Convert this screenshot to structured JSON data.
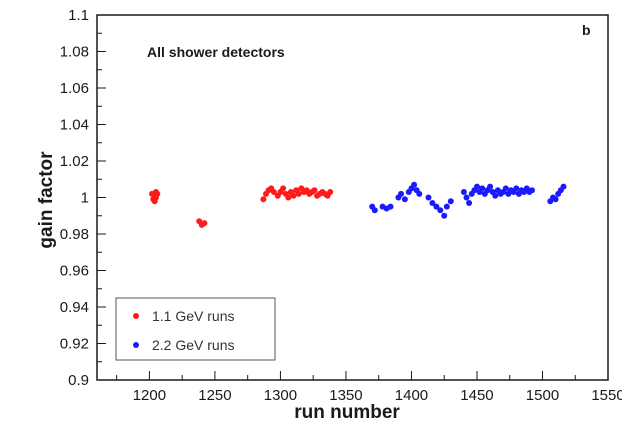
{
  "chart_data": {
    "type": "scatter",
    "title": "",
    "xlabel": "run number",
    "ylabel": "gain factor",
    "xlim": [
      1160,
      1550
    ],
    "ylim": [
      0.9,
      1.1
    ],
    "x_ticks": [
      1200,
      1250,
      1300,
      1350,
      1400,
      1450,
      1500,
      1550
    ],
    "y_ticks": [
      0.9,
      0.92,
      0.94,
      0.96,
      0.98,
      1,
      1.02,
      1.04,
      1.06,
      1.08,
      1.1
    ],
    "x_tick_labels": [
      "1200",
      "1250",
      "1300",
      "1350",
      "1400",
      "1450",
      "1500",
      "1550"
    ],
    "y_tick_labels": [
      "0.9",
      "0.92",
      "0.94",
      "0.96",
      "0.98",
      "1",
      "1.02",
      "1.04",
      "1.06",
      "1.08",
      "1.1"
    ],
    "annotation": "All shower detectors",
    "panel_label": "b",
    "legend_position": "bottom-left",
    "grid": false,
    "series": [
      {
        "name": "1.1 GeV runs",
        "color": "#ff1a1a",
        "points": [
          [
            1202,
            1.002
          ],
          [
            1203,
            0.999
          ],
          [
            1204,
            1.001
          ],
          [
            1205,
            1.0
          ],
          [
            1206,
            1.002
          ],
          [
            1204,
            0.998
          ],
          [
            1205,
            1.003
          ],
          [
            1238,
            0.987
          ],
          [
            1240,
            0.985
          ],
          [
            1242,
            0.986
          ],
          [
            1287,
            0.999
          ],
          [
            1289,
            1.002
          ],
          [
            1291,
            1.004
          ],
          [
            1293,
            1.005
          ],
          [
            1295,
            1.003
          ],
          [
            1298,
            1.001
          ],
          [
            1300,
            1.003
          ],
          [
            1302,
            1.005
          ],
          [
            1304,
            1.002
          ],
          [
            1306,
            1.0
          ],
          [
            1308,
            1.003
          ],
          [
            1310,
            1.001
          ],
          [
            1312,
            1.004
          ],
          [
            1314,
            1.002
          ],
          [
            1316,
            1.005
          ],
          [
            1318,
            1.003
          ],
          [
            1320,
            1.004
          ],
          [
            1322,
            1.002
          ],
          [
            1324,
            1.003
          ],
          [
            1326,
            1.004
          ],
          [
            1328,
            1.001
          ],
          [
            1330,
            1.002
          ],
          [
            1332,
            1.003
          ],
          [
            1334,
            1.002
          ],
          [
            1336,
            1.001
          ],
          [
            1338,
            1.003
          ]
        ]
      },
      {
        "name": "2.2 GeV runs",
        "color": "#1a1aff",
        "points": [
          [
            1370,
            0.995
          ],
          [
            1372,
            0.993
          ],
          [
            1378,
            0.995
          ],
          [
            1381,
            0.994
          ],
          [
            1384,
            0.995
          ],
          [
            1390,
            1.0
          ],
          [
            1392,
            1.002
          ],
          [
            1395,
            0.999
          ],
          [
            1398,
            1.003
          ],
          [
            1400,
            1.005
          ],
          [
            1402,
            1.007
          ],
          [
            1404,
            1.004
          ],
          [
            1406,
            1.002
          ],
          [
            1413,
            1.0
          ],
          [
            1416,
            0.997
          ],
          [
            1419,
            0.995
          ],
          [
            1422,
            0.993
          ],
          [
            1425,
            0.99
          ],
          [
            1427,
            0.995
          ],
          [
            1430,
            0.998
          ],
          [
            1440,
            1.003
          ],
          [
            1442,
            1.0
          ],
          [
            1444,
            0.997
          ],
          [
            1446,
            1.002
          ],
          [
            1448,
            1.004
          ],
          [
            1450,
            1.006
          ],
          [
            1452,
            1.003
          ],
          [
            1454,
            1.005
          ],
          [
            1456,
            1.002
          ],
          [
            1458,
            1.004
          ],
          [
            1460,
            1.006
          ],
          [
            1462,
            1.003
          ],
          [
            1464,
            1.001
          ],
          [
            1466,
            1.004
          ],
          [
            1468,
            1.002
          ],
          [
            1470,
            1.003
          ],
          [
            1472,
            1.005
          ],
          [
            1474,
            1.002
          ],
          [
            1476,
            1.004
          ],
          [
            1478,
            1.003
          ],
          [
            1480,
            1.005
          ],
          [
            1482,
            1.002
          ],
          [
            1484,
            1.004
          ],
          [
            1486,
            1.003
          ],
          [
            1488,
            1.005
          ],
          [
            1490,
            1.003
          ],
          [
            1492,
            1.004
          ],
          [
            1506,
            0.998
          ],
          [
            1508,
            1.0
          ],
          [
            1510,
            0.999
          ],
          [
            1512,
            1.002
          ],
          [
            1514,
            1.004
          ],
          [
            1516,
            1.006
          ]
        ]
      }
    ]
  }
}
